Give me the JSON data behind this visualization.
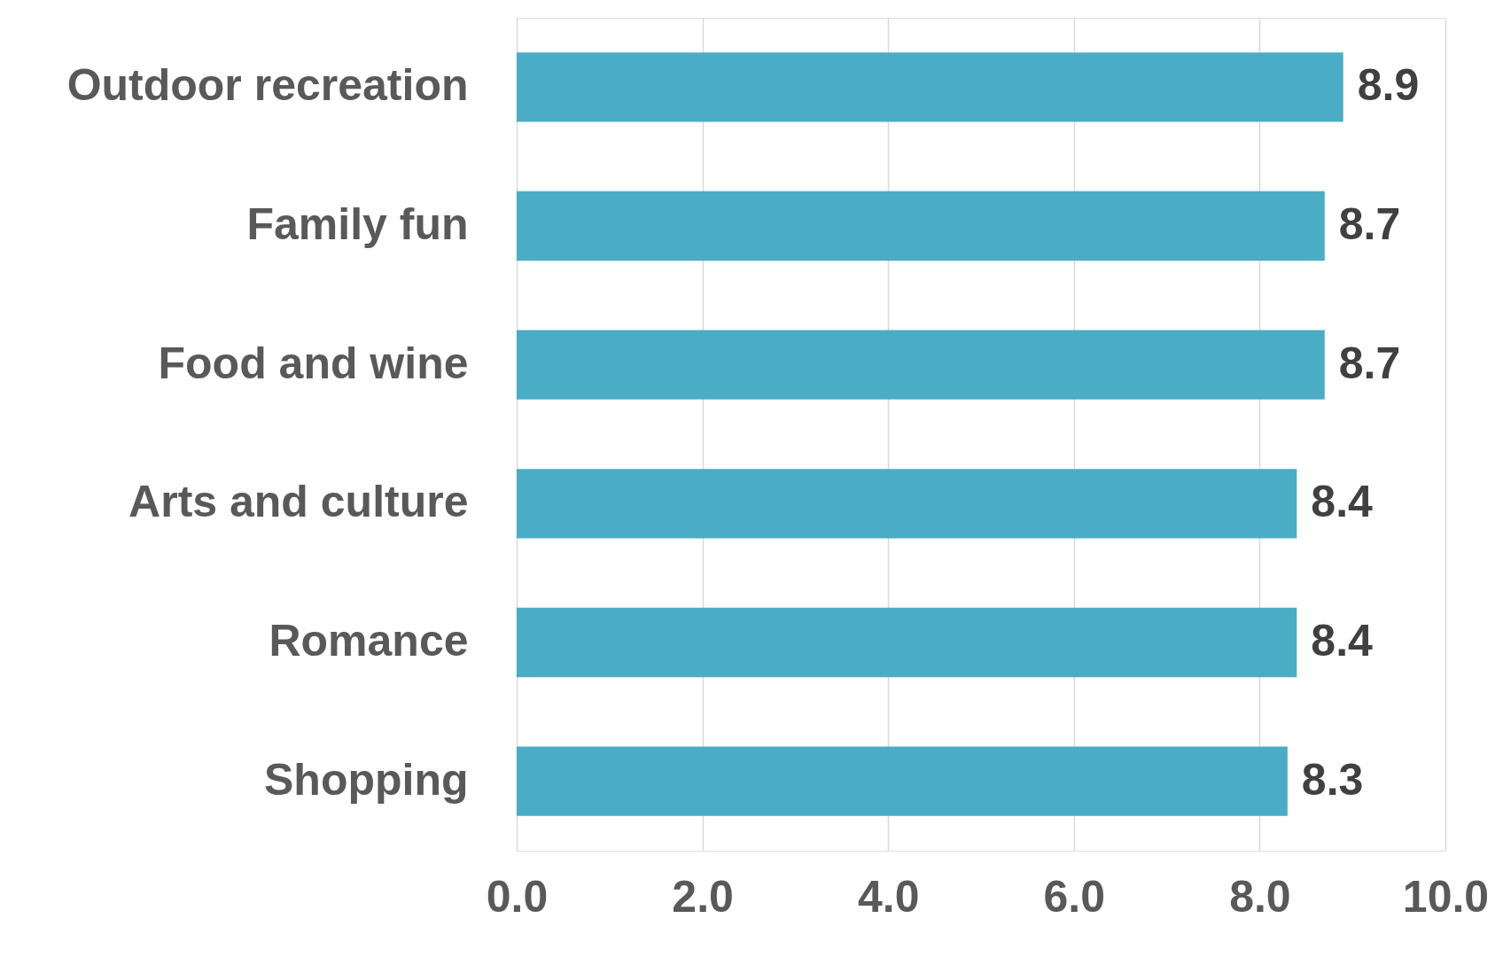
{
  "chart_data": {
    "type": "bar",
    "orientation": "horizontal",
    "categories": [
      "Outdoor recreation",
      "Family fun",
      "Food and wine",
      "Arts and culture",
      "Romance",
      "Shopping"
    ],
    "values": [
      8.9,
      8.7,
      8.7,
      8.4,
      8.4,
      8.3
    ],
    "color": "#4bacc6",
    "xlim": [
      0,
      10
    ],
    "xticks": [
      {
        "value": 0,
        "label": "0.0"
      },
      {
        "value": 2,
        "label": "2.0"
      },
      {
        "value": 4,
        "label": "4.0"
      },
      {
        "value": 6,
        "label": "6.0"
      },
      {
        "value": 8,
        "label": "8.0"
      },
      {
        "value": 10,
        "label": "10.0"
      }
    ],
    "grid": "x",
    "data_labels": true
  }
}
